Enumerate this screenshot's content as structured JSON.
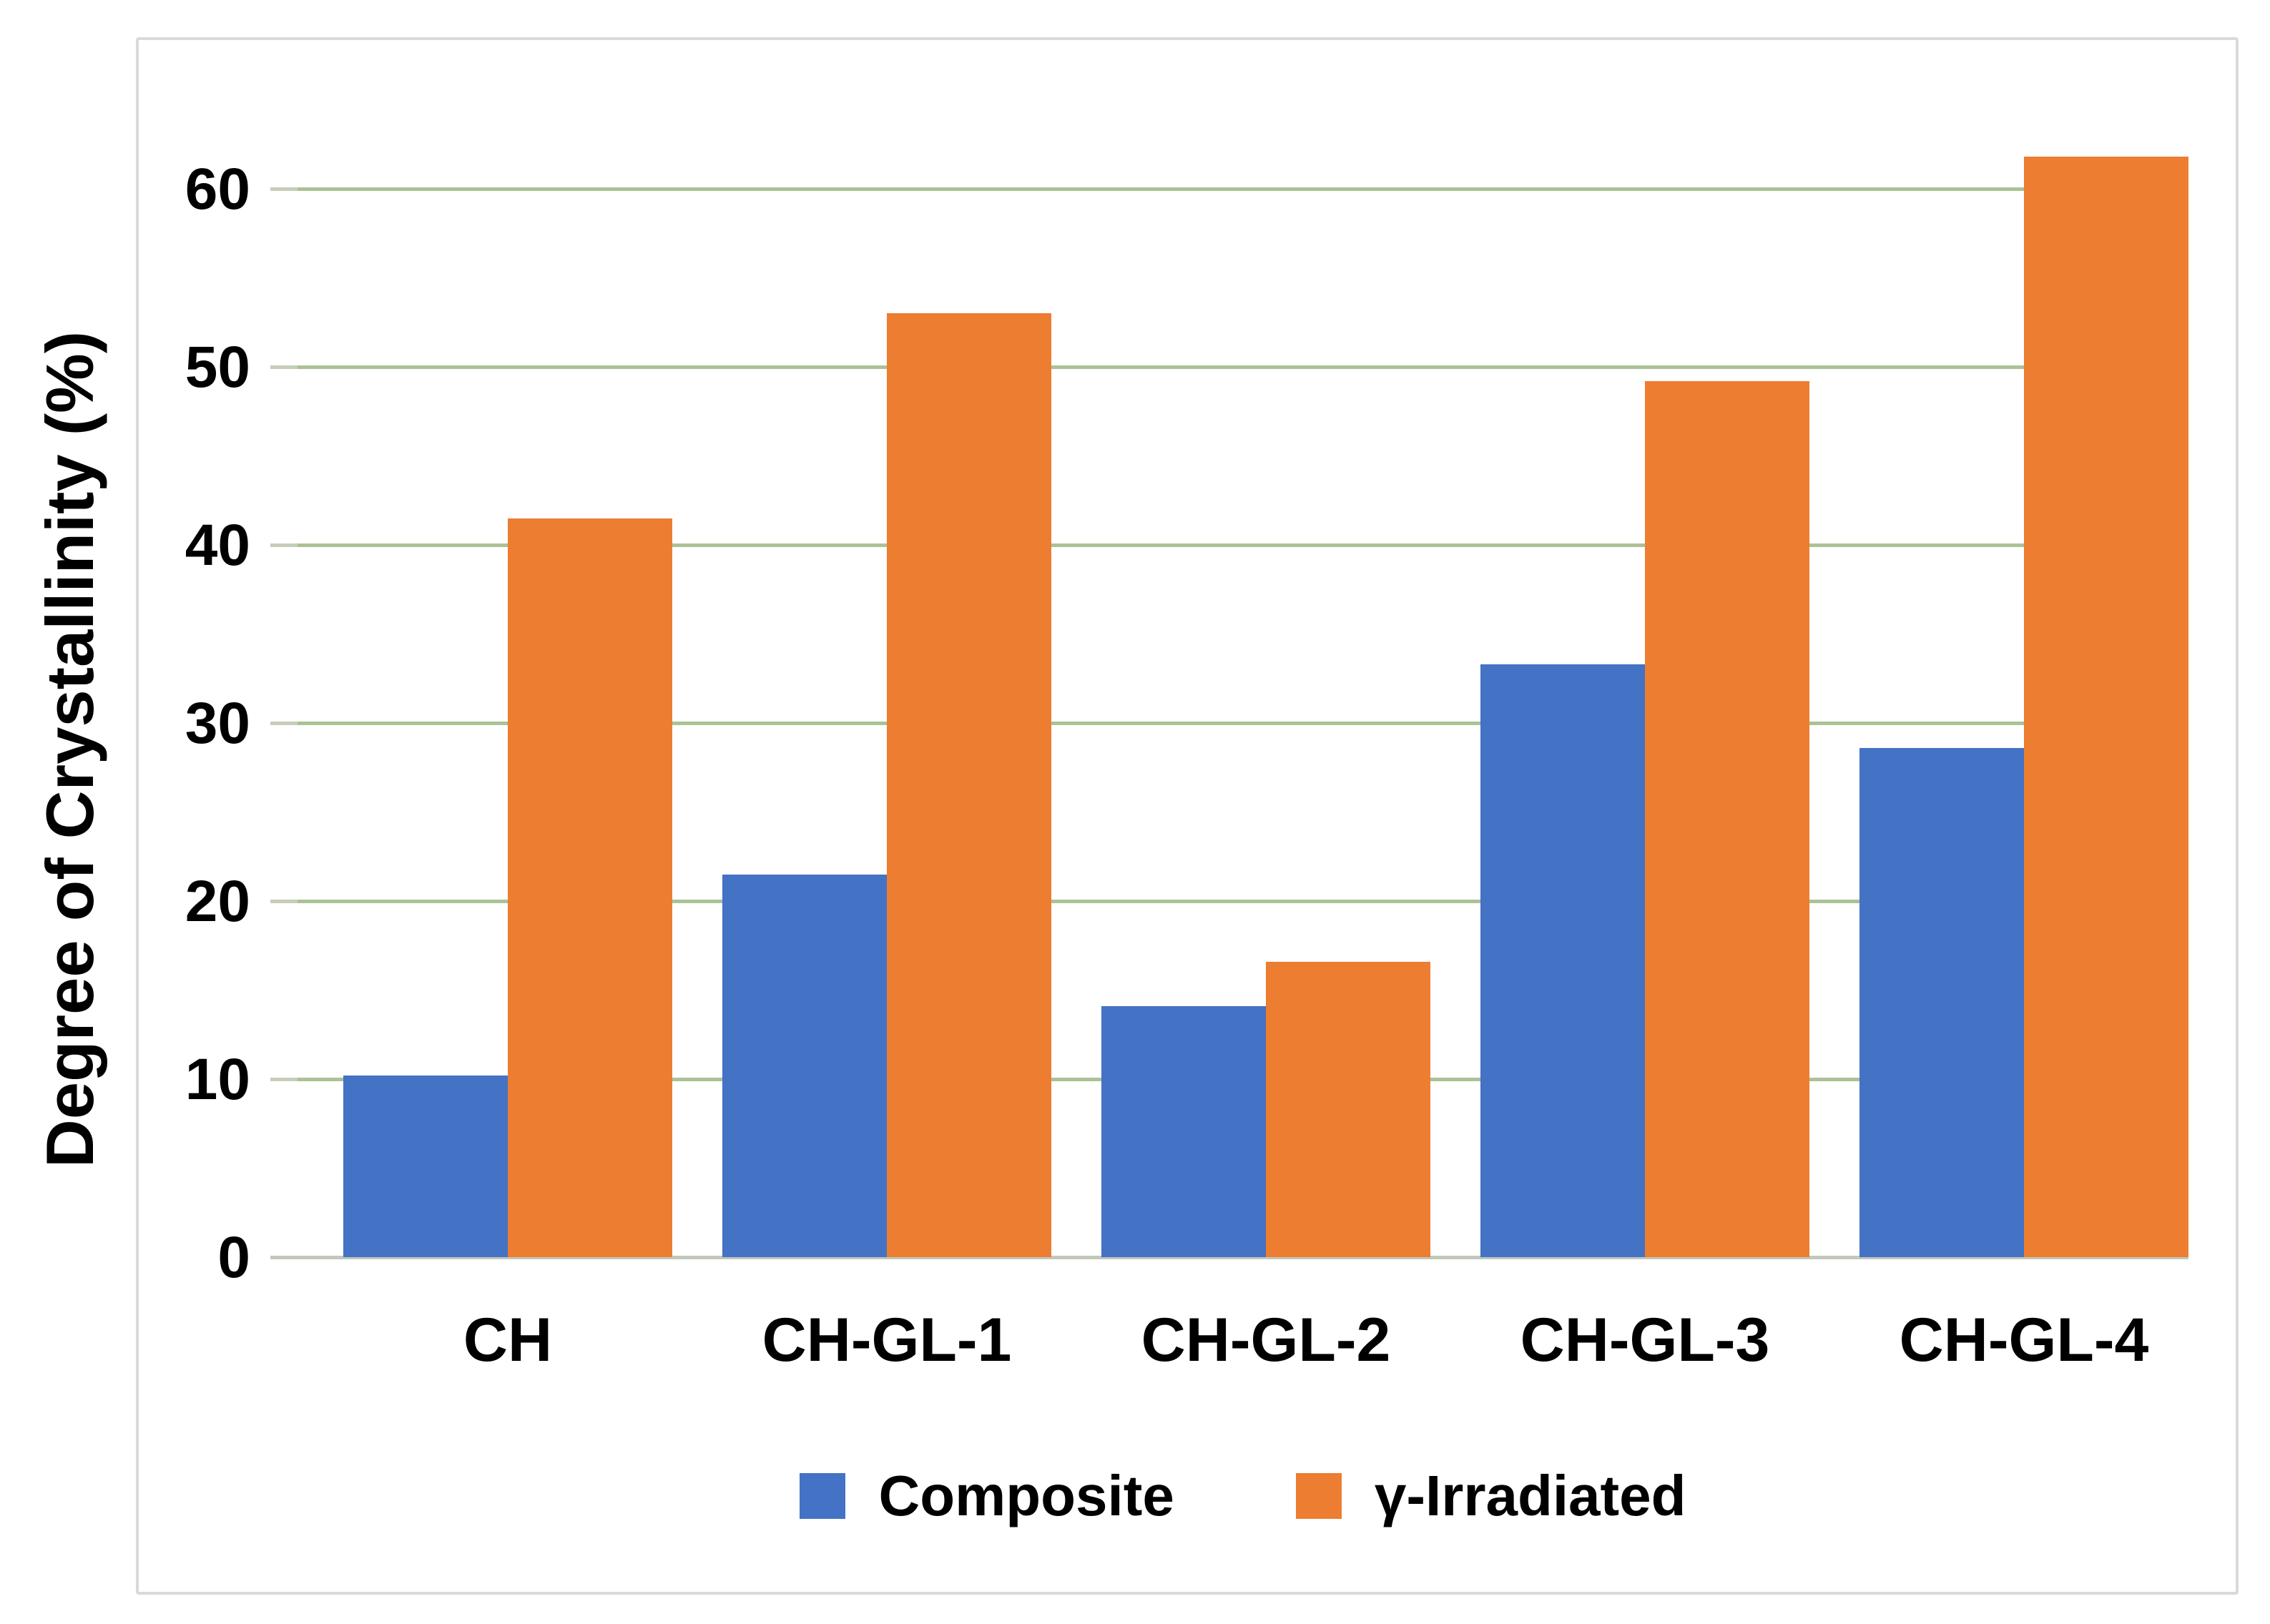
{
  "chart_data": {
    "type": "bar",
    "title": "",
    "xlabel": "",
    "ylabel": "Degree of Crystallinity (%)",
    "categories": [
      "CH",
      "CH-GL-1",
      "CH-GL-2",
      "CH-GL-3",
      "CH-GL-4"
    ],
    "series": [
      {
        "name": "Composite",
        "color": "#4472C4",
        "values": [
          10.2,
          21.5,
          14.1,
          33.3,
          28.6
        ]
      },
      {
        "name": "γ-Irradiated",
        "color": "#ED7D31",
        "values": [
          41.5,
          53.0,
          16.6,
          49.2,
          61.8
        ]
      }
    ],
    "yticks": [
      0,
      10,
      20,
      30,
      40,
      50,
      60
    ],
    "ylim": [
      0,
      65
    ],
    "grid": true,
    "gridline_color": "#abc295",
    "axis_line_color": "#c2c8ba",
    "border_color": "#d9d9d9",
    "legend_position": "bottom"
  }
}
